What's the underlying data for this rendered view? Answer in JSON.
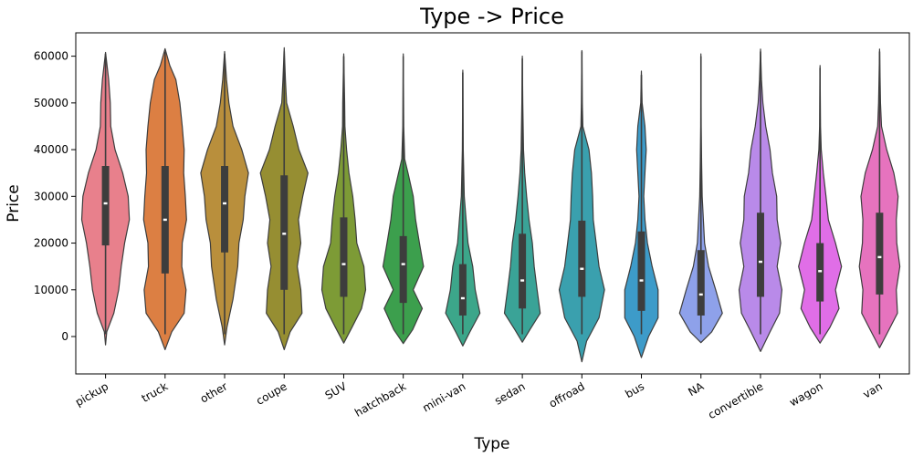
{
  "chart_data": {
    "type": "violin",
    "title": "Type -> Price",
    "xlabel": "Type",
    "ylabel": "Price",
    "ylim": [
      -8000,
      65000
    ],
    "yticks": [
      0,
      10000,
      20000,
      30000,
      40000,
      50000,
      60000
    ],
    "grid": false,
    "categories": [
      "pickup",
      "truck",
      "other",
      "coupe",
      "SUV",
      "hatchback",
      "mini-van",
      "sedan",
      "offroad",
      "bus",
      "NA",
      "convertible",
      "wagon",
      "van"
    ],
    "colors": [
      "#e8808c",
      "#dc7f43",
      "#b98f3c",
      "#968e32",
      "#7d9b36",
      "#3c9f4d",
      "#3ca68a",
      "#3aa397",
      "#3aa0ae",
      "#3d9bc9",
      "#8ea1ea",
      "#b98ae9",
      "#e06ee7",
      "#e673be"
    ],
    "violins": [
      {
        "category": "pickup",
        "min": -1800,
        "max": 60800,
        "q1": 19500,
        "median": 28500,
        "q3": 36500,
        "whisker_low": 500,
        "whisker_high": 60500,
        "density": [
          [
            -1800,
            0
          ],
          [
            1000,
            0.05
          ],
          [
            5000,
            0.35
          ],
          [
            10000,
            0.55
          ],
          [
            15000,
            0.66
          ],
          [
            20000,
            0.8
          ],
          [
            25000,
            1.0
          ],
          [
            30000,
            0.95
          ],
          [
            35000,
            0.72
          ],
          [
            40000,
            0.4
          ],
          [
            45000,
            0.22
          ],
          [
            50000,
            0.2
          ],
          [
            55000,
            0.13
          ],
          [
            60800,
            0
          ]
        ]
      },
      {
        "category": "truck",
        "min": -2800,
        "max": 61600,
        "q1": 13500,
        "median": 25000,
        "q3": 36500,
        "whisker_low": 500,
        "whisker_high": 61000,
        "density": [
          [
            -2800,
            0
          ],
          [
            1000,
            0.28
          ],
          [
            5000,
            0.8
          ],
          [
            10000,
            0.88
          ],
          [
            15000,
            0.7
          ],
          [
            20000,
            0.72
          ],
          [
            25000,
            0.9
          ],
          [
            30000,
            0.85
          ],
          [
            35000,
            0.78
          ],
          [
            40000,
            0.8
          ],
          [
            45000,
            0.72
          ],
          [
            50000,
            0.62
          ],
          [
            55000,
            0.45
          ],
          [
            58000,
            0.2
          ],
          [
            61600,
            0
          ]
        ]
      },
      {
        "category": "other",
        "min": -1800,
        "max": 61000,
        "q1": 18000,
        "median": 28500,
        "q3": 36500,
        "whisker_low": 500,
        "whisker_high": 60500,
        "density": [
          [
            -1800,
            0
          ],
          [
            2000,
            0.1
          ],
          [
            8000,
            0.35
          ],
          [
            15000,
            0.55
          ],
          [
            20000,
            0.6
          ],
          [
            25000,
            0.78
          ],
          [
            30000,
            0.85
          ],
          [
            35000,
            1.0
          ],
          [
            40000,
            0.72
          ],
          [
            45000,
            0.35
          ],
          [
            50000,
            0.18
          ],
          [
            55000,
            0.08
          ],
          [
            61000,
            0
          ]
        ]
      },
      {
        "category": "coupe",
        "min": -2800,
        "max": 61800,
        "q1": 10000,
        "median": 22000,
        "q3": 34500,
        "whisker_low": 500,
        "whisker_high": 61000,
        "density": [
          [
            -2800,
            0
          ],
          [
            1000,
            0.25
          ],
          [
            5000,
            0.75
          ],
          [
            10000,
            0.7
          ],
          [
            15000,
            0.55
          ],
          [
            20000,
            0.7
          ],
          [
            25000,
            0.6
          ],
          [
            30000,
            0.78
          ],
          [
            35000,
            1.0
          ],
          [
            40000,
            0.62
          ],
          [
            45000,
            0.38
          ],
          [
            50000,
            0.1
          ],
          [
            55000,
            0.05
          ],
          [
            61800,
            0
          ]
        ]
      },
      {
        "category": "SUV",
        "min": -1400,
        "max": 60500,
        "q1": 8500,
        "median": 15500,
        "q3": 25500,
        "whisker_low": 500,
        "whisker_high": 60000,
        "density": [
          [
            -1400,
            0
          ],
          [
            2000,
            0.35
          ],
          [
            6000,
            0.75
          ],
          [
            10000,
            0.92
          ],
          [
            15000,
            0.85
          ],
          [
            20000,
            0.55
          ],
          [
            25000,
            0.48
          ],
          [
            30000,
            0.38
          ],
          [
            35000,
            0.22
          ],
          [
            40000,
            0.12
          ],
          [
            45000,
            0.05
          ],
          [
            50000,
            0.04
          ],
          [
            60500,
            0
          ]
        ]
      },
      {
        "category": "hatchback",
        "min": -1500,
        "max": 60500,
        "q1": 7200,
        "median": 15500,
        "q3": 21500,
        "whisker_low": 500,
        "whisker_high": 60000,
        "density": [
          [
            -1500,
            0
          ],
          [
            1500,
            0.4
          ],
          [
            6000,
            0.8
          ],
          [
            10000,
            0.42
          ],
          [
            15000,
            0.85
          ],
          [
            20000,
            0.68
          ],
          [
            25000,
            0.52
          ],
          [
            30000,
            0.42
          ],
          [
            35000,
            0.2
          ],
          [
            38000,
            0.06
          ],
          [
            45000,
            0.02
          ],
          [
            60500,
            0
          ]
        ]
      },
      {
        "category": "mini-van",
        "min": -2000,
        "max": 57000,
        "q1": 4500,
        "median": 8200,
        "q3": 15500,
        "whisker_low": 500,
        "whisker_high": 56500,
        "density": [
          [
            -2000,
            0
          ],
          [
            1000,
            0.3
          ],
          [
            5000,
            0.72
          ],
          [
            10000,
            0.52
          ],
          [
            15000,
            0.42
          ],
          [
            20000,
            0.22
          ],
          [
            25000,
            0.14
          ],
          [
            30000,
            0.06
          ],
          [
            40000,
            0.02
          ],
          [
            57000,
            0
          ]
        ]
      },
      {
        "category": "sedan",
        "min": -1200,
        "max": 60000,
        "q1": 6000,
        "median": 12000,
        "q3": 22000,
        "whisker_low": 500,
        "whisker_high": 59500,
        "density": [
          [
            -1200,
            0
          ],
          [
            1500,
            0.32
          ],
          [
            5000,
            0.75
          ],
          [
            10000,
            0.62
          ],
          [
            15000,
            0.5
          ],
          [
            20000,
            0.42
          ],
          [
            25000,
            0.28
          ],
          [
            30000,
            0.18
          ],
          [
            35000,
            0.1
          ],
          [
            40000,
            0.05
          ],
          [
            50000,
            0.02
          ],
          [
            60000,
            0
          ]
        ]
      },
      {
        "category": "offroad",
        "min": -5400,
        "max": 61200,
        "q1": 8500,
        "median": 14500,
        "q3": 24800,
        "whisker_low": 500,
        "whisker_high": 61000,
        "density": [
          [
            -5400,
            0
          ],
          [
            -1000,
            0.2
          ],
          [
            4000,
            0.72
          ],
          [
            10000,
            0.95
          ],
          [
            15000,
            0.72
          ],
          [
            20000,
            0.6
          ],
          [
            25000,
            0.48
          ],
          [
            30000,
            0.45
          ],
          [
            35000,
            0.4
          ],
          [
            40000,
            0.3
          ],
          [
            45000,
            0.04
          ],
          [
            50000,
            0.02
          ],
          [
            61200,
            0
          ]
        ]
      },
      {
        "category": "bus",
        "min": -4500,
        "max": 56800,
        "q1": 5500,
        "median": 12000,
        "q3": 22500,
        "whisker_low": 500,
        "whisker_high": 56000,
        "density": [
          [
            -4500,
            0
          ],
          [
            0,
            0.3
          ],
          [
            4000,
            0.7
          ],
          [
            10000,
            0.7
          ],
          [
            15000,
            0.45
          ],
          [
            20000,
            0.25
          ],
          [
            25000,
            0.15
          ],
          [
            30000,
            0.1
          ],
          [
            35000,
            0.15
          ],
          [
            40000,
            0.2
          ],
          [
            45000,
            0.15
          ],
          [
            50000,
            0.03
          ],
          [
            56800,
            0
          ]
        ]
      },
      {
        "category": "NA",
        "min": -1300,
        "max": 60500,
        "q1": 4500,
        "median": 9000,
        "q3": 18500,
        "whisker_low": 500,
        "whisker_high": 60000,
        "density": [
          [
            -1300,
            0
          ],
          [
            1000,
            0.45
          ],
          [
            5000,
            0.9
          ],
          [
            10000,
            0.62
          ],
          [
            15000,
            0.32
          ],
          [
            20000,
            0.15
          ],
          [
            25000,
            0.1
          ],
          [
            30000,
            0.05
          ],
          [
            37000,
            0.03
          ],
          [
            45000,
            0.01
          ],
          [
            60500,
            0
          ]
        ]
      },
      {
        "category": "convertible",
        "min": -3200,
        "max": 61500,
        "q1": 8500,
        "median": 16000,
        "q3": 26500,
        "whisker_low": 500,
        "whisker_high": 61000,
        "density": [
          [
            -3200,
            0
          ],
          [
            1000,
            0.4
          ],
          [
            5000,
            0.8
          ],
          [
            10000,
            0.9
          ],
          [
            15000,
            0.7
          ],
          [
            20000,
            0.85
          ],
          [
            25000,
            0.7
          ],
          [
            30000,
            0.68
          ],
          [
            35000,
            0.5
          ],
          [
            40000,
            0.4
          ],
          [
            45000,
            0.22
          ],
          [
            50000,
            0.1
          ],
          [
            55000,
            0.04
          ],
          [
            61500,
            0
          ]
        ]
      },
      {
        "category": "wagon",
        "min": -1400,
        "max": 58000,
        "q1": 7500,
        "median": 14000,
        "q3": 20000,
        "whisker_low": 500,
        "whisker_high": 57500,
        "density": [
          [
            -1400,
            0
          ],
          [
            2000,
            0.42
          ],
          [
            6000,
            0.8
          ],
          [
            10000,
            0.65
          ],
          [
            15000,
            0.9
          ],
          [
            20000,
            0.65
          ],
          [
            25000,
            0.35
          ],
          [
            30000,
            0.25
          ],
          [
            35000,
            0.14
          ],
          [
            40000,
            0.05
          ],
          [
            45000,
            0.02
          ],
          [
            58000,
            0
          ]
        ]
      },
      {
        "category": "van",
        "min": -2400,
        "max": 61500,
        "q1": 9000,
        "median": 17000,
        "q3": 26500,
        "whisker_low": 500,
        "whisker_high": 61000,
        "density": [
          [
            -2400,
            0
          ],
          [
            1000,
            0.35
          ],
          [
            5000,
            0.75
          ],
          [
            10000,
            0.7
          ],
          [
            15000,
            0.85
          ],
          [
            20000,
            0.72
          ],
          [
            25000,
            0.7
          ],
          [
            30000,
            0.78
          ],
          [
            35000,
            0.6
          ],
          [
            40000,
            0.3
          ],
          [
            45000,
            0.08
          ],
          [
            50000,
            0.04
          ],
          [
            61500,
            0
          ]
        ]
      }
    ]
  }
}
